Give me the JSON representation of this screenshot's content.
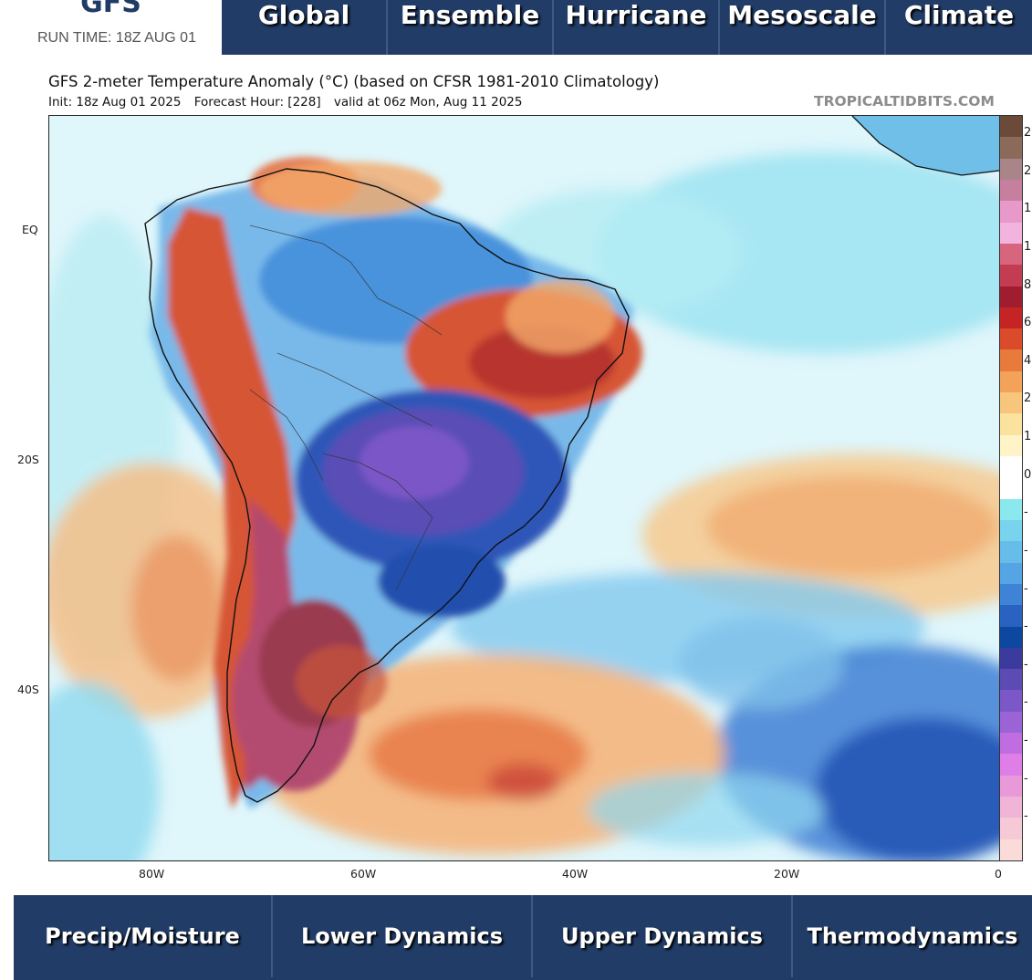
{
  "brand": {
    "title": "GFS",
    "run_time": "RUN TIME: 18Z AUG 01"
  },
  "top_nav": [
    "Global",
    "Ensemble",
    "Hurricane",
    "Mesoscale",
    "Climate"
  ],
  "figure": {
    "title": "GFS 2-meter Temperature Anomaly (°C) (based on CFSR 1981-2010 Climatology)",
    "init": "Init: 18z Aug 01 2025",
    "forecast_hour": "Forecast Hour: [228]",
    "valid": "valid at 06z Mon, Aug 11 2025",
    "watermark": "TROPICALTIDBITS.COM"
  },
  "axes": {
    "lat_labels": [
      "EQ",
      "20S",
      "40S"
    ],
    "lon_labels": [
      "80W",
      "60W",
      "40W",
      "20W",
      "0"
    ]
  },
  "colorbar": {
    "labels": [
      "2",
      "2",
      "1",
      "1",
      "8",
      "6",
      "4",
      "2",
      "1",
      "0",
      "-",
      "-",
      "-",
      "-",
      "-",
      "-",
      "-",
      "-",
      "-"
    ],
    "colors": [
      "#6b4a3a",
      "#8b6a5a",
      "#a9858a",
      "#c77fa0",
      "#e898c9",
      "#f2b4de",
      "#d7657d",
      "#c43c52",
      "#a01c2f",
      "#c62424",
      "#d94b2b",
      "#e87a3c",
      "#f3a25a",
      "#f7c57b",
      "#fbe29f",
      "#fff3c8",
      "#ffffff",
      "#ffffff",
      "#8be8ee",
      "#7ad3ec",
      "#66bde9",
      "#55a4e3",
      "#3f83d6",
      "#2962c0",
      "#0d48a0",
      "#3b3a9d",
      "#5b4bb2",
      "#7c57c7",
      "#9a63d6",
      "#bf6de1",
      "#e07ee8",
      "#e89ad8",
      "#efb4d6",
      "#f5cad6",
      "#fadbd8"
    ],
    "label_positions": [
      "2",
      "2",
      "1",
      "1",
      "8",
      "6",
      "4",
      "2",
      "1",
      "0",
      "-",
      "-",
      "-",
      "-",
      "-",
      "-",
      "-",
      "-",
      "-"
    ]
  },
  "bottom_nav": [
    "Precip/Moisture",
    "Lower Dynamics",
    "Upper Dynamics",
    "Thermodynamics"
  ]
}
